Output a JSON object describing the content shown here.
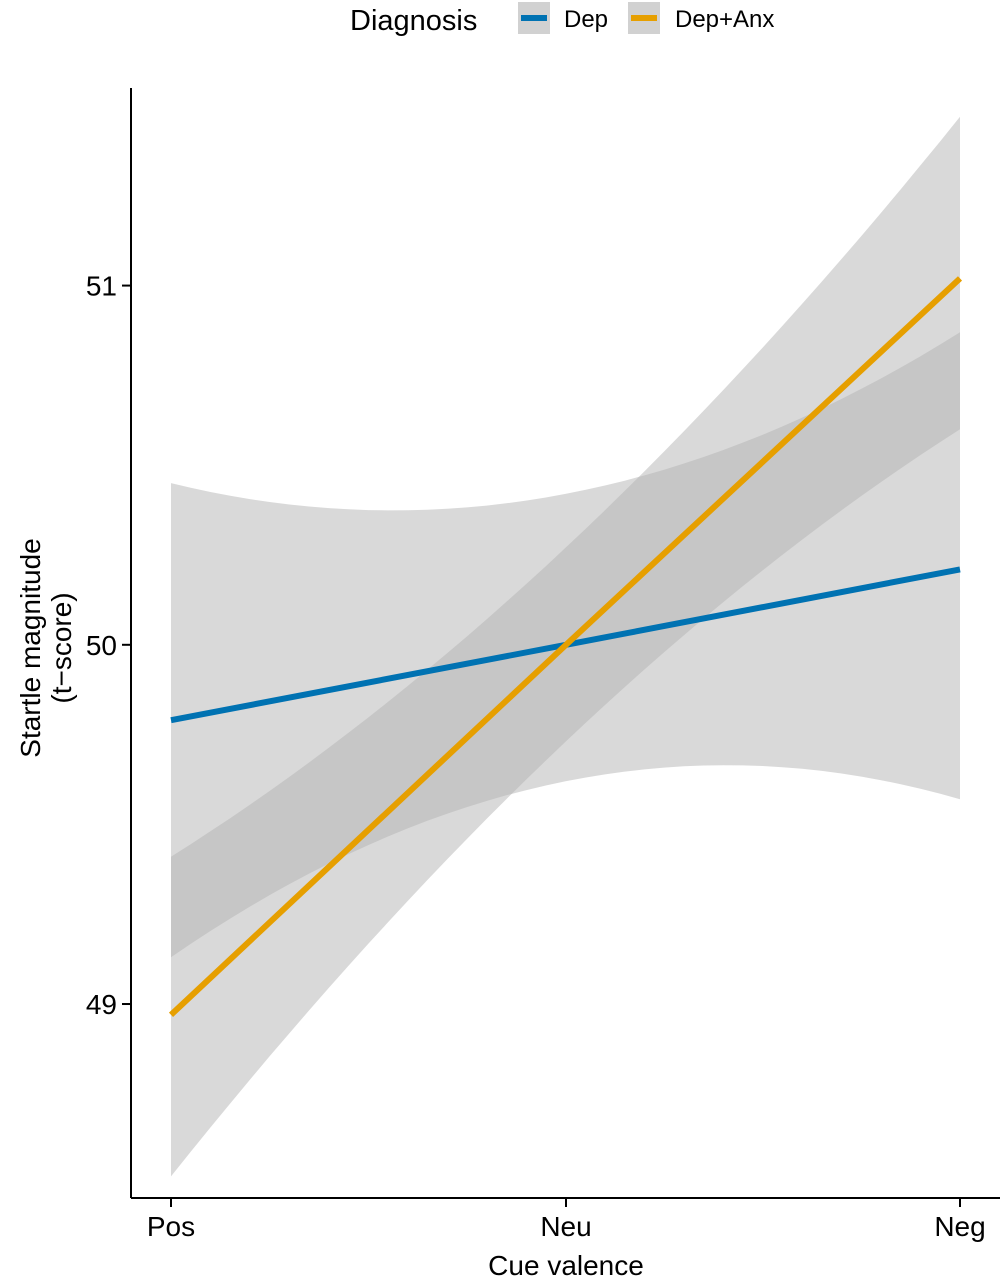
{
  "chart_data": {
    "type": "line",
    "xlabel": "Cue valence",
    "ylabel": [
      "Startle magnitude",
      "(t−score)"
    ],
    "categories": [
      "Pos",
      "Neu",
      "Neg"
    ],
    "ylim": [
      48.46,
      51.55
    ],
    "yticks": [
      49,
      50,
      51
    ],
    "grid": false,
    "legend": {
      "title": "Diagnosis",
      "position": "top"
    },
    "series": [
      {
        "name": "Dep",
        "color": "#0072B2",
        "values": [
          49.79,
          50.0,
          50.21
        ],
        "ci_lower": [
          49.13,
          49.62,
          49.57
        ],
        "ci_upper": [
          50.45,
          50.42,
          50.87
        ]
      },
      {
        "name": "Dep+Anx",
        "color": "#E69F00",
        "values": [
          48.97,
          50.0,
          51.02
        ],
        "ci_lower": [
          48.52,
          49.73,
          50.6
        ],
        "ci_upper": [
          49.41,
          50.27,
          51.47
        ]
      }
    ],
    "band_color": "#b3b3b3"
  }
}
